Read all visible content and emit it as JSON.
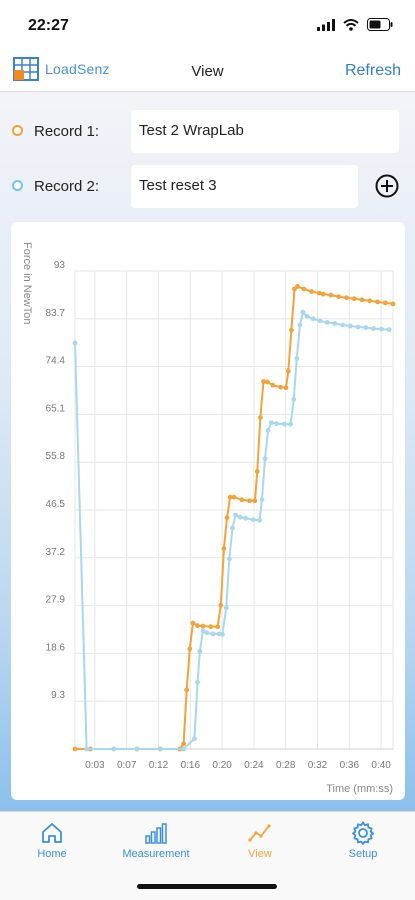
{
  "status": {
    "time": "22:27"
  },
  "nav": {
    "logo_text": "LoadSenz",
    "logo_icon": "grid-logo-icon",
    "title": "View",
    "refresh_label": "Refresh"
  },
  "records": [
    {
      "label": "Record 1:",
      "value": "Test 2 WrapLab",
      "color": "#f3a338"
    },
    {
      "label": "Record 2:",
      "value": "Test reset 3",
      "color": "#6fc8ec"
    }
  ],
  "add_icon": "plus-circle-icon",
  "chart_data": {
    "type": "line",
    "ylabel": "Force in NewTon",
    "xlabel": "Time (mm:ss)",
    "y_ticks": [
      "9.3",
      "18.6",
      "27.9",
      "37.2",
      "46.5",
      "55.8",
      "65.1",
      "74.4",
      "83.7",
      "93"
    ],
    "x_ticks": [
      "0:03",
      "0:07",
      "0:12",
      "0:16",
      "0:20",
      "0:24",
      "0:28",
      "0:32",
      "0:36",
      "0:40"
    ],
    "xlim": [
      0,
      41
    ],
    "ylim": [
      0,
      93
    ],
    "grid": true,
    "series": [
      {
        "color": "#f3a338",
        "points": [
          [
            0,
            0
          ],
          [
            2,
            0
          ],
          [
            5,
            0
          ],
          [
            8,
            0
          ],
          [
            11,
            0
          ],
          [
            13.5,
            0
          ],
          [
            14,
            1
          ],
          [
            14.4,
            11.5
          ],
          [
            14.8,
            19.5
          ],
          [
            15.2,
            24.5
          ],
          [
            15.8,
            24
          ],
          [
            16.5,
            23.9
          ],
          [
            17.5,
            23.8
          ],
          [
            18.4,
            23.8
          ],
          [
            18.8,
            28
          ],
          [
            19.2,
            39
          ],
          [
            19.6,
            45
          ],
          [
            20,
            49
          ],
          [
            20.5,
            49
          ],
          [
            21.5,
            48.5
          ],
          [
            22.5,
            48.3
          ],
          [
            23.2,
            48.3
          ],
          [
            23.5,
            54
          ],
          [
            23.9,
            64.5
          ],
          [
            24.3,
            71.5
          ],
          [
            24.8,
            71.4
          ],
          [
            25.5,
            70.8
          ],
          [
            26.5,
            70.4
          ],
          [
            27.2,
            70.3
          ],
          [
            27.5,
            73.5
          ],
          [
            27.9,
            81.5
          ],
          [
            28.3,
            89.5
          ],
          [
            28.7,
            90
          ],
          [
            29.5,
            89.5
          ],
          [
            30.5,
            89
          ],
          [
            31.5,
            88.7
          ],
          [
            32,
            88.5
          ],
          [
            33,
            88.3
          ],
          [
            34,
            88
          ],
          [
            35,
            87.8
          ],
          [
            36,
            87.6
          ],
          [
            37,
            87.4
          ],
          [
            38,
            87.2
          ],
          [
            39,
            87
          ],
          [
            40,
            86.8
          ],
          [
            41,
            86.6
          ]
        ]
      },
      {
        "color": "#a9d7ee",
        "points": [
          [
            0,
            79
          ],
          [
            1.5,
            0
          ],
          [
            5,
            0
          ],
          [
            8,
            0
          ],
          [
            11,
            0
          ],
          [
            14,
            0
          ],
          [
            15.4,
            2
          ],
          [
            15.8,
            13
          ],
          [
            16.1,
            19
          ],
          [
            16.5,
            23
          ],
          [
            17,
            22.6
          ],
          [
            17.8,
            22.4
          ],
          [
            18.6,
            22.4
          ],
          [
            19,
            22.3
          ],
          [
            19.5,
            27.5
          ],
          [
            19.9,
            37
          ],
          [
            20.3,
            43
          ],
          [
            20.7,
            45.5
          ],
          [
            21.3,
            45.1
          ],
          [
            22,
            44.9
          ],
          [
            23,
            44.6
          ],
          [
            23.8,
            44.5
          ],
          [
            24.1,
            48.5
          ],
          [
            24.5,
            56.5
          ],
          [
            24.9,
            62
          ],
          [
            25.3,
            63.5
          ],
          [
            26,
            63.3
          ],
          [
            27,
            63.2
          ],
          [
            27.8,
            63.2
          ],
          [
            28.2,
            68
          ],
          [
            28.6,
            76
          ],
          [
            29,
            82.5
          ],
          [
            29.4,
            85
          ],
          [
            29.9,
            84.2
          ],
          [
            30.7,
            83.7
          ],
          [
            31.6,
            83.3
          ],
          [
            32.5,
            83
          ],
          [
            33.5,
            82.8
          ],
          [
            34.5,
            82.5
          ],
          [
            35.5,
            82.3
          ],
          [
            36.5,
            82.1
          ],
          [
            37.5,
            82
          ],
          [
            38.5,
            81.8
          ],
          [
            39.5,
            81.7
          ],
          [
            40.5,
            81.6
          ]
        ]
      }
    ]
  },
  "tabs": [
    {
      "label": "Home",
      "icon": "home-icon"
    },
    {
      "label": "Measurement",
      "icon": "bar-chart-icon"
    },
    {
      "label": "View",
      "icon": "line-chart-icon"
    },
    {
      "label": "Setup",
      "icon": "gear-icon"
    }
  ]
}
